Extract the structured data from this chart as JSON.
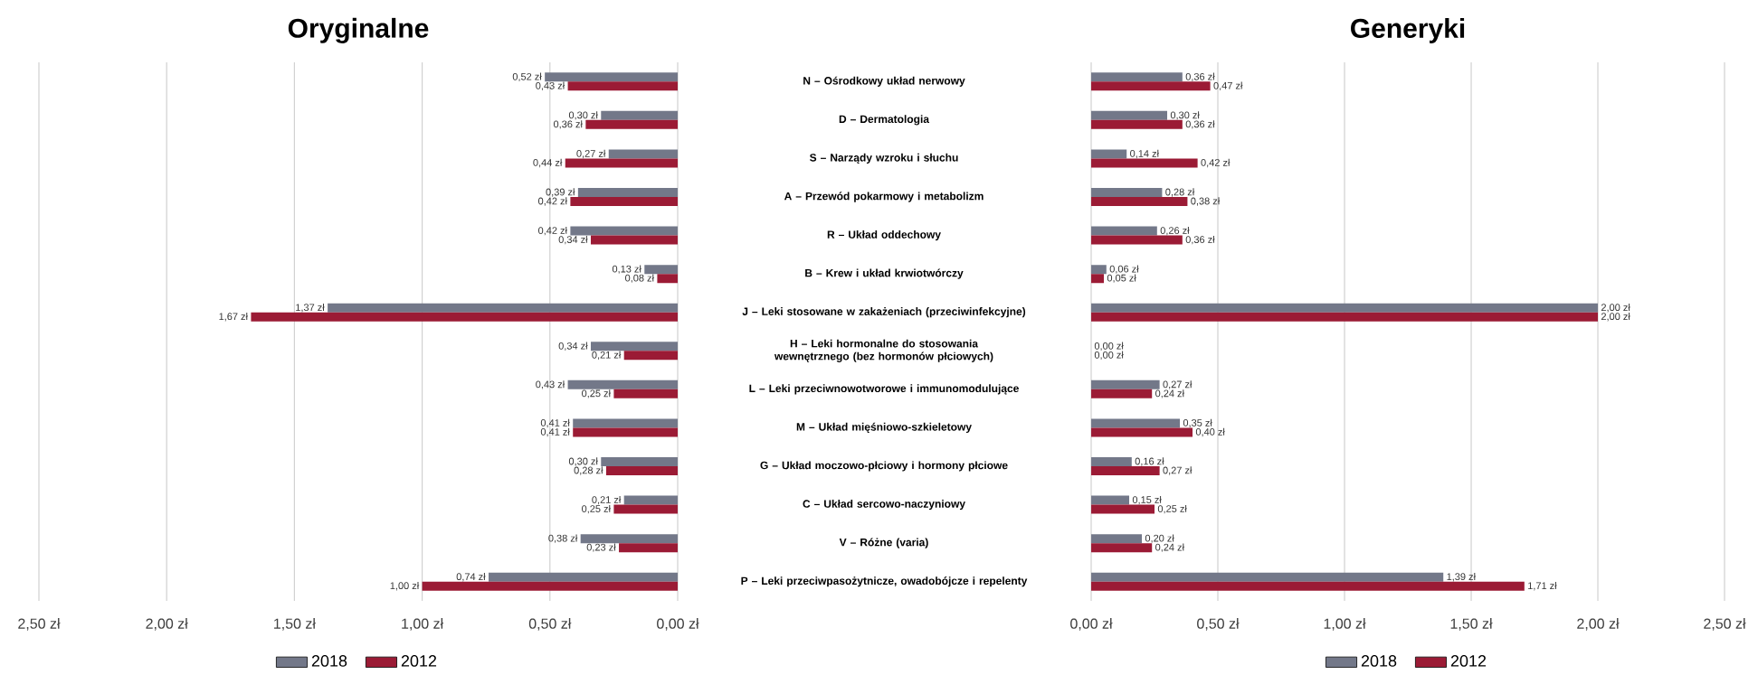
{
  "chart_data": [
    {
      "type": "bar",
      "orientation": "horizontal",
      "title": "Oryginalne",
      "categories": [
        "N – Ośrodkowy układ nerwowy",
        "D – Dermatologia",
        "S – Narządy wzroku i słuchu",
        "A – Przewód pokarmowy i metabolizm",
        "R – Układ oddechowy",
        "B – Krew i układ krwiotwórczy",
        "J – Leki stosowane  w zakażeniach (przeciwinfekcyjne)",
        "H – Leki hormonalne do stosowania  wewnętrznego (bez hormonów płciowych)",
        "L – Leki przeciwnowotworowe i immunomodulujące",
        "M – Układ mięśniowo-szkieletowy",
        "G – Układ moczowo-płciowy i hormony płciowe",
        "C – Układ sercowo-naczyniowy",
        "V – Różne (varia)",
        "P – Leki przeciwpasożytnicze, owadobójcze i repelenty"
      ],
      "series": [
        {
          "name": "2018",
          "color": "#737889",
          "values": [
            0.52,
            0.3,
            0.27,
            0.39,
            0.42,
            0.13,
            1.37,
            0.34,
            0.43,
            0.41,
            0.3,
            0.21,
            0.38,
            0.74
          ],
          "value_labels": [
            "0,52 zł",
            "0,30 zł",
            "0,27 zł",
            "0,39 zł",
            "0,42 zł",
            "0,13 zł",
            "1,37 zł",
            "0,34 zł",
            "0,43 zł",
            "0,41 zł",
            "0,30 zł",
            "0,21 zł",
            "0,38 zł",
            "0,74 zł"
          ]
        },
        {
          "name": "2012",
          "color": "#9b1b35",
          "values": [
            0.43,
            0.36,
            0.44,
            0.42,
            0.34,
            0.08,
            1.67,
            0.21,
            0.25,
            0.41,
            0.28,
            0.25,
            0.23,
            1.0
          ],
          "value_labels": [
            "0,43 zł",
            "0,36 zł",
            "0,44 zł",
            "0,42 zł",
            "0,34 zł",
            "0,08 zł",
            "1,67 zł",
            "0,21 zł",
            "0,25 zł",
            "0,41 zł",
            "0,28 zł",
            "0,25 zł",
            "0,23 zł",
            "1,00 zł"
          ]
        }
      ],
      "xlim": [
        2.5,
        0
      ],
      "xticks": [
        {
          "value": 2.5,
          "label": "2,50 zł"
        },
        {
          "value": 2.0,
          "label": "2,00 zł"
        },
        {
          "value": 1.5,
          "label": "1,50 zł"
        },
        {
          "value": 1.0,
          "label": "1,00 zł"
        },
        {
          "value": 0.5,
          "label": "0,50 zł"
        },
        {
          "value": 0,
          "label": "0,00 zł"
        }
      ],
      "grid": "x",
      "legend": "bottom"
    },
    {
      "type": "bar",
      "orientation": "horizontal",
      "title": "Generyki",
      "categories": [
        null,
        null,
        null,
        null,
        null,
        null,
        null,
        null,
        null,
        null,
        null,
        null,
        null,
        null
      ],
      "series": [
        {
          "name": "2018",
          "color": "#737889",
          "values": [
            0.36,
            0.3,
            0.14,
            0.28,
            0.26,
            0.06,
            2.0,
            0.0,
            0.27,
            0.35,
            0.16,
            0.15,
            0.2,
            1.39
          ],
          "value_labels": [
            "0,36 zł",
            "0,30 zł",
            "0,14 zł",
            "0,28 zł",
            "0,26 zł",
            "0,06 zł",
            "2,00 zł",
            "0,00 zł",
            "0,27 zł",
            "0,35 zł",
            "0,16 zł",
            "0,15 zł",
            "0,20 zł",
            "1,39 zł"
          ]
        },
        {
          "name": "2012",
          "color": "#9b1b35",
          "values": [
            0.47,
            0.36,
            0.42,
            0.38,
            0.36,
            0.05,
            2.0,
            0.0,
            0.24,
            0.4,
            0.27,
            0.25,
            0.24,
            1.71
          ],
          "value_labels": [
            "0,47 zł",
            "0,36 zł",
            "0,42 zł",
            "0,38 zł",
            "0,36 zł",
            "0,05 zł",
            "2,00 zł",
            "0,00 zł",
            "0,24 zł",
            "0,40 zł",
            "0,27 zł",
            "0,25 zł",
            "0,24 zł",
            "1,71 zł"
          ]
        }
      ],
      "xlim": [
        0,
        2.5
      ],
      "xticks": [
        {
          "value": 0,
          "label": "0,00 zł"
        },
        {
          "value": 0.5,
          "label": "0,50 zł"
        },
        {
          "value": 1.0,
          "label": "1,00 zł"
        },
        {
          "value": 1.5,
          "label": "1,50 zł"
        },
        {
          "value": 2.0,
          "label": "2,00 zł"
        },
        {
          "value": 2.5,
          "label": "2,50 zł"
        }
      ],
      "grid": "x",
      "legend": "bottom",
      "tick_labels": "x"
    }
  ]
}
